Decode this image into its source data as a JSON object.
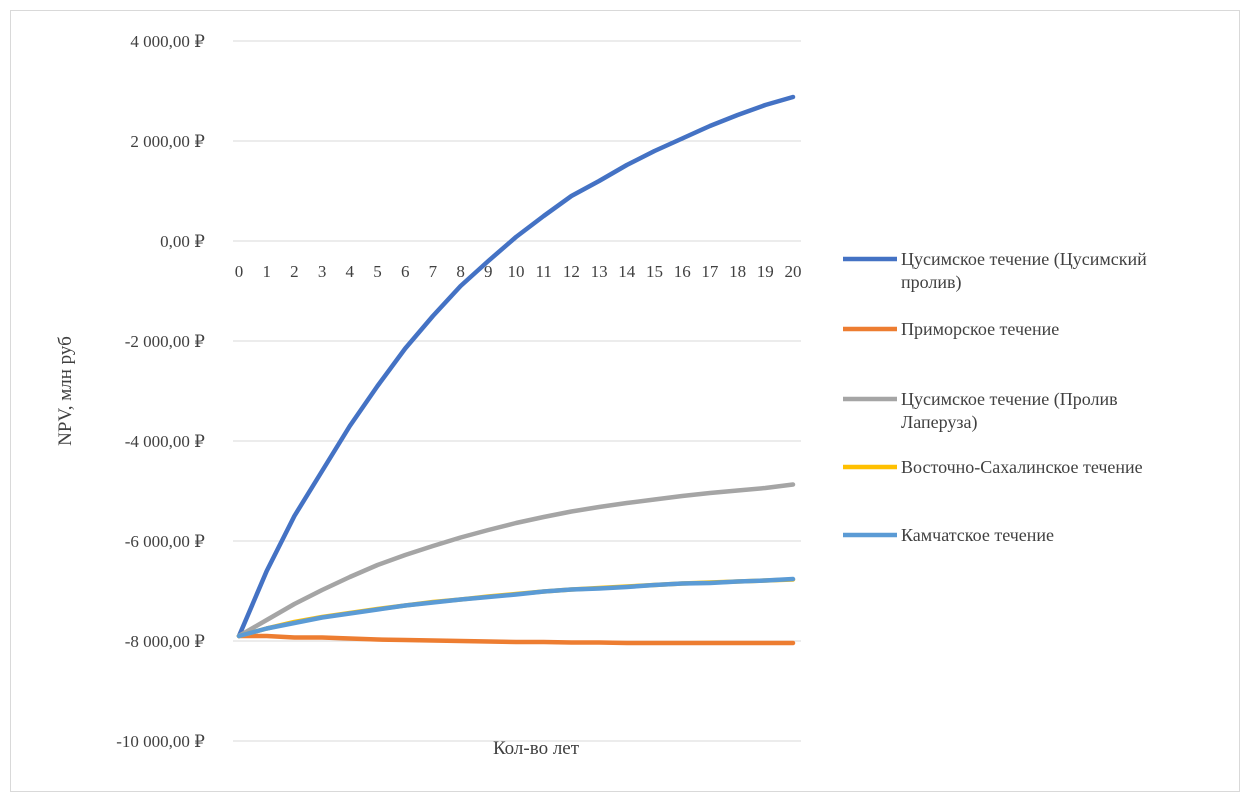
{
  "chart_data": {
    "type": "line",
    "title": "",
    "xlabel": "Кол-во лет",
    "ylabel": "NPV,  млн руб",
    "ylim": [
      -10000,
      4000
    ],
    "yticks": [
      4000,
      2000,
      0,
      -2000,
      -4000,
      -6000,
      -8000,
      -10000
    ],
    "ytick_labels": [
      "4 000,00 ₽",
      "2 000,00 ₽",
      "0,00 ₽",
      "-2 000,00 ₽",
      "-4 000,00 ₽",
      "-6 000,00 ₽",
      "-8 000,00 ₽",
      "-10 000,00 ₽"
    ],
    "x": [
      0,
      1,
      2,
      3,
      4,
      5,
      6,
      7,
      8,
      9,
      10,
      11,
      12,
      13,
      14,
      15,
      16,
      17,
      18,
      19,
      20
    ],
    "grid": true,
    "legend_position": "right",
    "series": [
      {
        "name": "Цусимское течение  (Цусимский пролив)",
        "legend_lines": [
          "Цусимское течение  (Цусимский",
          "пролив)"
        ],
        "color": "#4472c4",
        "values": [
          -7900,
          -6600,
          -5500,
          -4600,
          -3700,
          -2900,
          -2150,
          -1500,
          -900,
          -400,
          80,
          500,
          900,
          1200,
          1520,
          1800,
          2050,
          2300,
          2520,
          2720,
          2880
        ]
      },
      {
        "name": "Приморское течение",
        "legend_lines": [
          "Приморское течение"
        ],
        "color": "#ed7d31",
        "values": [
          -7900,
          -7900,
          -7930,
          -7930,
          -7950,
          -7970,
          -7980,
          -7990,
          -8000,
          -8010,
          -8020,
          -8020,
          -8030,
          -8030,
          -8040,
          -8040,
          -8040,
          -8040,
          -8040,
          -8040,
          -8040
        ]
      },
      {
        "name": "Цусимское течение  (Пролив Лаперуза)",
        "legend_lines": [
          "Цусимское течение  (Пролив",
          "Лаперуза)"
        ],
        "color": "#a5a5a5",
        "values": [
          -7900,
          -7580,
          -7260,
          -6980,
          -6720,
          -6480,
          -6280,
          -6100,
          -5930,
          -5780,
          -5640,
          -5520,
          -5410,
          -5320,
          -5240,
          -5170,
          -5100,
          -5040,
          -4990,
          -4940,
          -4870
        ]
      },
      {
        "name": "Восточно-Сахалинское  течение",
        "legend_lines": [
          "Восточно-Сахалинское  течение"
        ],
        "color": "#ffc000",
        "values": [
          -7900,
          -7750,
          -7620,
          -7520,
          -7440,
          -7360,
          -7290,
          -7220,
          -7170,
          -7110,
          -7060,
          -7010,
          -6970,
          -6940,
          -6910,
          -6880,
          -6850,
          -6830,
          -6810,
          -6790,
          -6770
        ]
      },
      {
        "name": "Камчатское  течение",
        "legend_lines": [
          "Камчатское  течение"
        ],
        "color": "#5b9bd5",
        "values": [
          -7900,
          -7750,
          -7640,
          -7530,
          -7450,
          -7370,
          -7290,
          -7230,
          -7170,
          -7120,
          -7070,
          -7010,
          -6970,
          -6950,
          -6920,
          -6880,
          -6850,
          -6840,
          -6810,
          -6790,
          -6760
        ]
      }
    ]
  }
}
